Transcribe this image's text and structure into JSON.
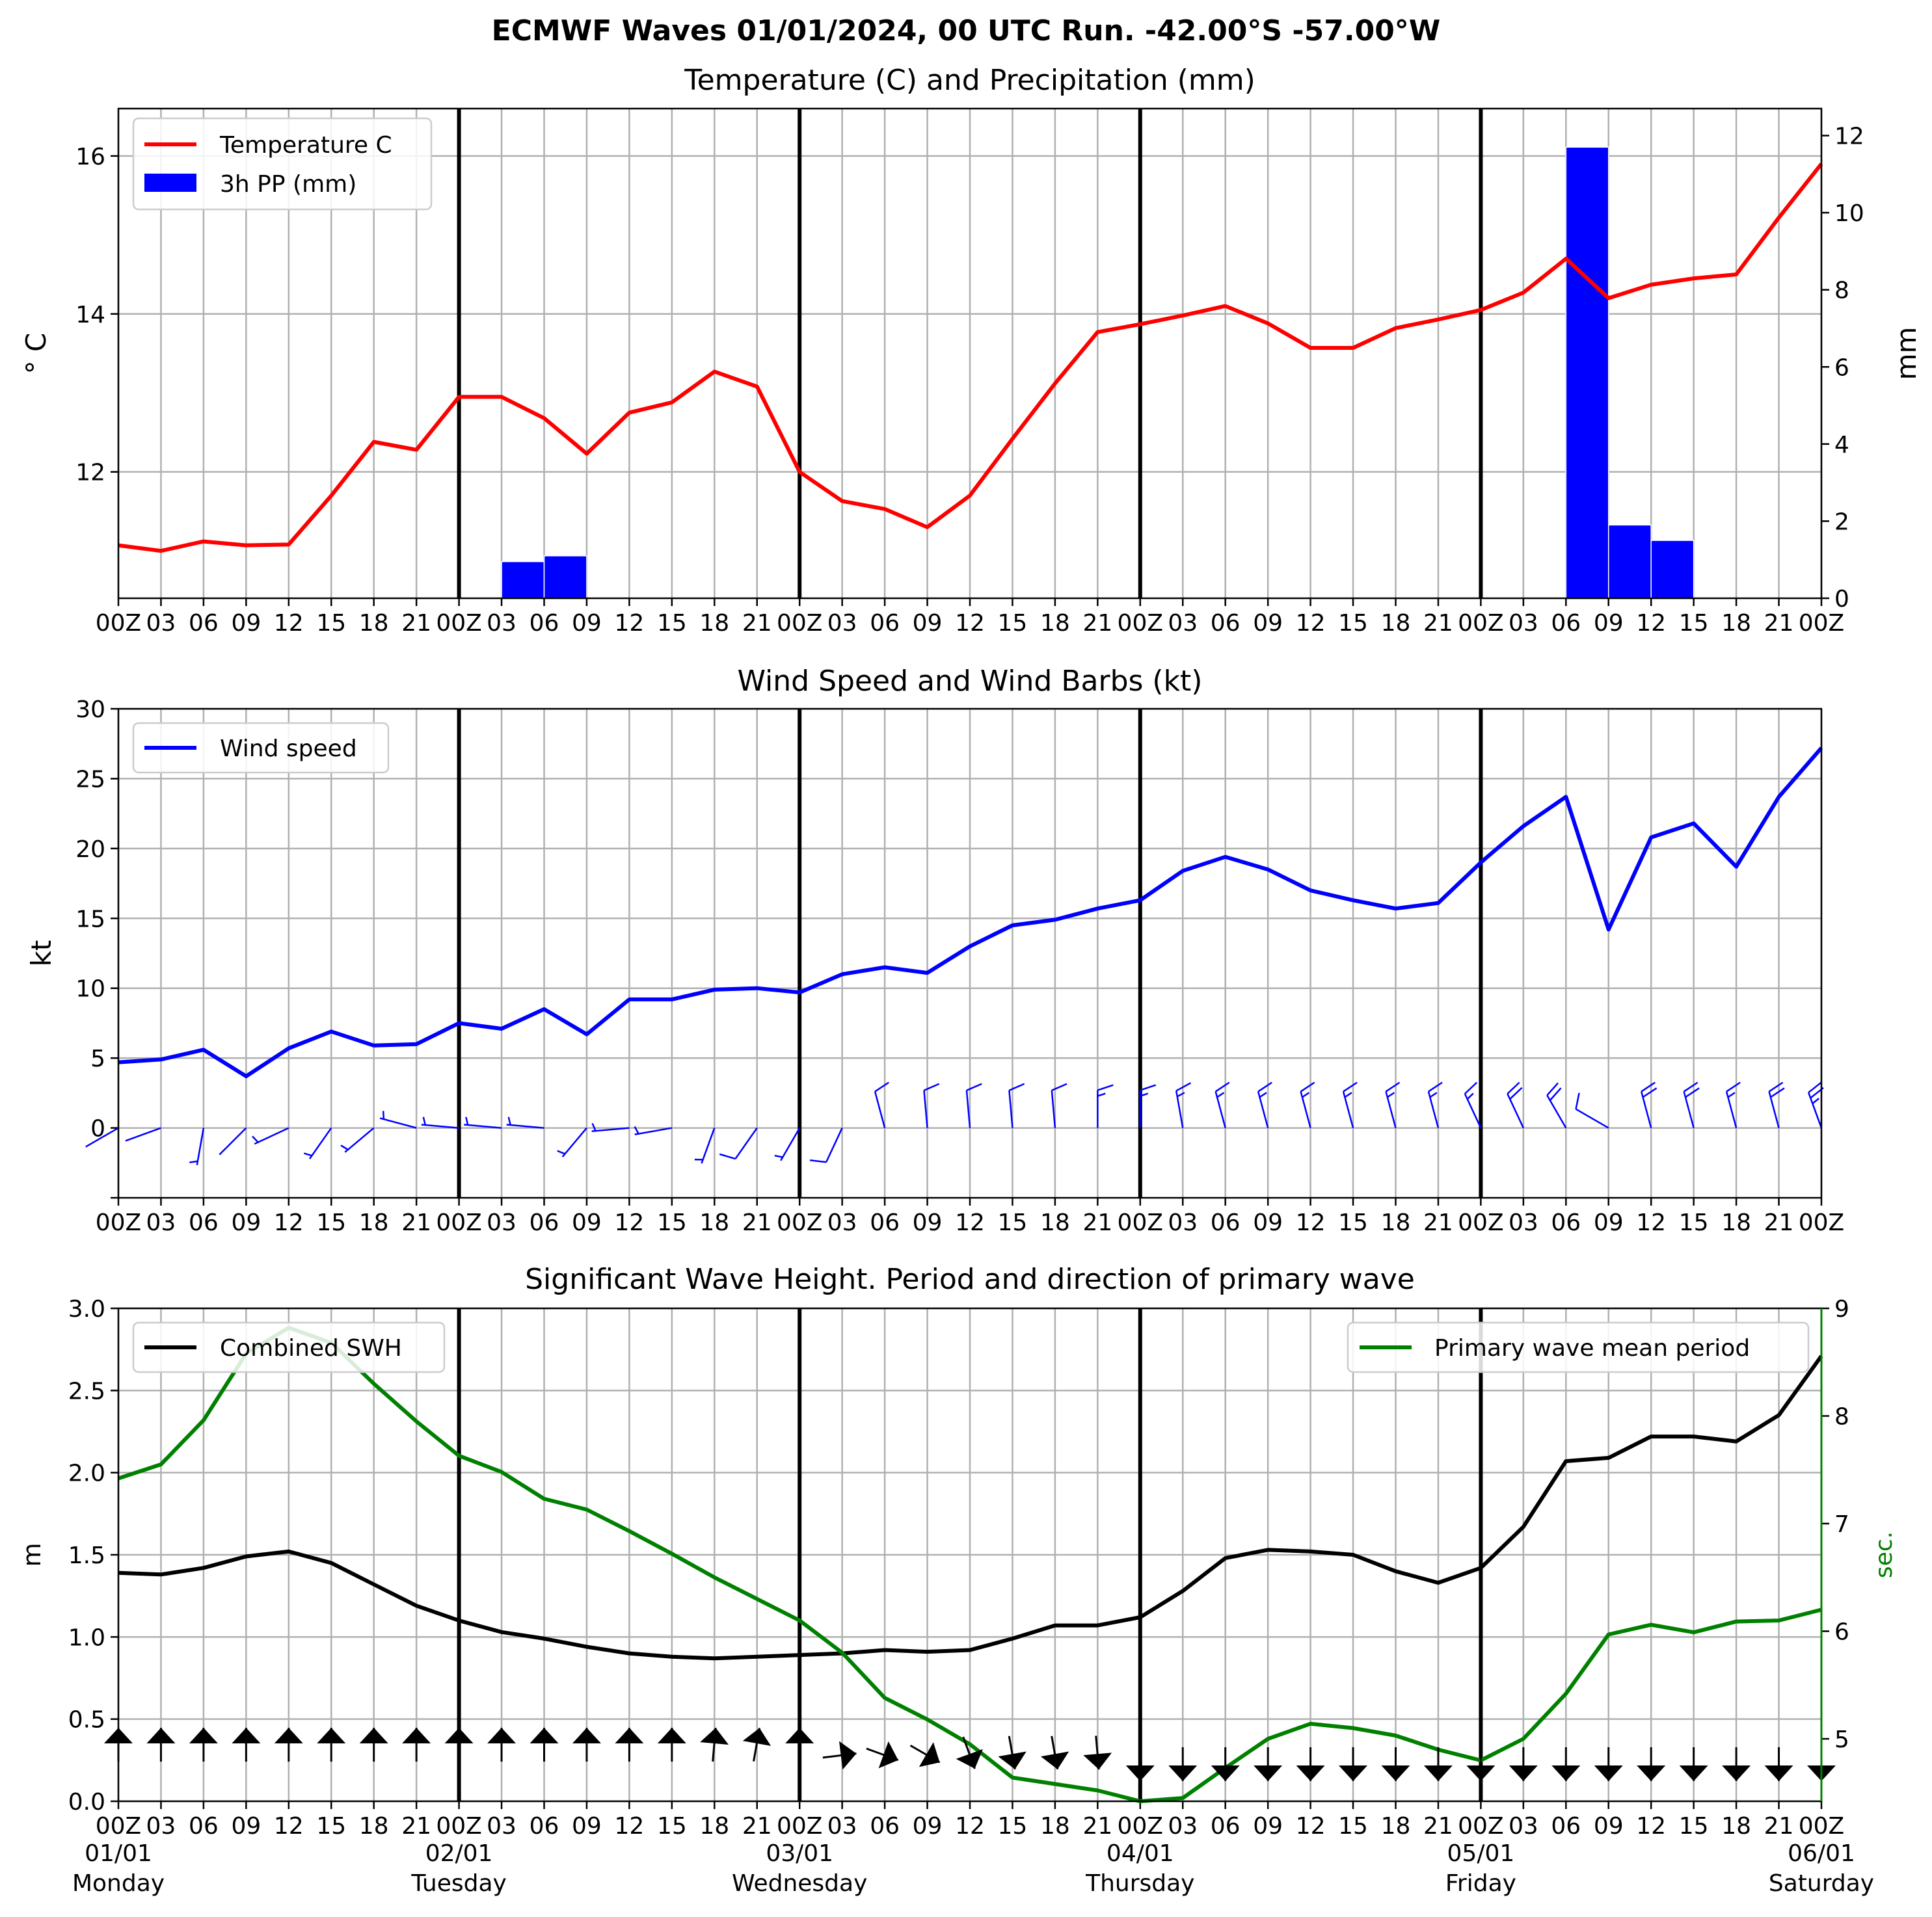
{
  "title": "ECMWF Waves 01/01/2024, 00 UTC Run. -42.00°S -57.00°W",
  "colors": {
    "temperature": "#ff0000",
    "precip": "#0000ff",
    "wind": "#0000ff",
    "swh": "#000000",
    "period": "#008000",
    "grid": "#b0b0b0"
  },
  "x_ticks": [
    "00Z",
    "03",
    "06",
    "09",
    "12",
    "15",
    "18",
    "21",
    "00Z",
    "03",
    "06",
    "09",
    "12",
    "15",
    "18",
    "21",
    "00Z",
    "03",
    "06",
    "09",
    "12",
    "15",
    "18",
    "21",
    "00Z",
    "03",
    "06",
    "09",
    "12",
    "15",
    "18",
    "21",
    "00Z",
    "03",
    "06",
    "09",
    "12",
    "15",
    "18",
    "21",
    "00Z"
  ],
  "day_labels": [
    {
      "date": "01/01",
      "day": "Monday",
      "step": 0
    },
    {
      "date": "02/01",
      "day": "Tuesday",
      "step": 8
    },
    {
      "date": "03/01",
      "day": "Wednesday",
      "step": 16
    },
    {
      "date": "04/01",
      "day": "Thursday",
      "step": 24
    },
    {
      "date": "05/01",
      "day": "Friday",
      "step": 32
    },
    {
      "date": "06/01",
      "day": "Saturday",
      "step": 40
    }
  ],
  "chart_data": [
    {
      "type": "line",
      "title": "Temperature (C) and Precipitation (mm)",
      "ylabel": "$^\\circ$C",
      "ylabel_display": "° C",
      "y2label": "mm",
      "ylim": [
        10.4,
        16.6
      ],
      "y2lim": [
        0,
        12.7
      ],
      "yticks": [
        12,
        14,
        16
      ],
      "y2ticks": [
        0,
        2,
        4,
        6,
        8,
        10,
        12
      ],
      "legend": {
        "position": "top-left",
        "entries": [
          "Temperature C",
          "3h PP (mm)"
        ]
      },
      "grid": true,
      "series": [
        {
          "name": "Temperature C",
          "type": "line",
          "color": "#ff0000",
          "values": [
            11.07,
            11.0,
            11.12,
            11.07,
            11.08,
            11.7,
            12.38,
            12.28,
            12.95,
            12.95,
            12.68,
            12.23,
            12.75,
            12.88,
            13.27,
            13.08,
            12.0,
            11.63,
            11.53,
            11.3,
            11.7,
            12.42,
            13.12,
            13.77,
            13.87,
            13.98,
            14.1,
            13.88,
            13.57,
            13.57,
            13.82,
            13.93,
            14.05,
            14.27,
            14.7,
            14.2,
            14.37,
            14.45,
            14.5,
            15.22,
            15.9
          ]
        },
        {
          "name": "3h PP (mm)",
          "type": "bar",
          "color": "#0000ff",
          "values": [
            0,
            0,
            0,
            0,
            0,
            0,
            0,
            0,
            0,
            0,
            0.95,
            1.1,
            0,
            0,
            0,
            0,
            0,
            0,
            0,
            0,
            0,
            0,
            0,
            0,
            0,
            0,
            0,
            0,
            0,
            0,
            0,
            0,
            0,
            0,
            0,
            11.7,
            1.9,
            1.5,
            0,
            0,
            0
          ]
        }
      ]
    },
    {
      "type": "line",
      "title": "Wind Speed and Wind Barbs (kt)",
      "ylabel": "kt",
      "ylim": [
        -5,
        30
      ],
      "yticks": [
        0,
        5,
        10,
        15,
        20,
        25,
        30
      ],
      "legend": {
        "position": "top-left",
        "entries": [
          "Wind speed"
        ]
      },
      "grid": true,
      "series": [
        {
          "name": "Wind speed",
          "type": "line",
          "color": "#0000ff",
          "values": [
            4.7,
            4.9,
            5.6,
            3.7,
            5.7,
            6.9,
            5.9,
            6.0,
            7.5,
            7.1,
            8.5,
            6.7,
            9.2,
            9.2,
            9.9,
            10.0,
            9.7,
            11.0,
            11.5,
            11.1,
            13.0,
            14.5,
            14.9,
            15.7,
            16.3,
            18.4,
            19.4,
            18.5,
            17.0,
            16.3,
            15.7,
            16.1,
            19.0,
            21.6,
            23.7,
            14.2,
            20.8,
            21.8,
            18.7,
            23.7,
            27.2
          ]
        },
        {
          "name": "Wind barbs",
          "type": "barbs",
          "color": "#0000ff",
          "direction_deg": [
            240,
            250,
            190,
            225,
            245,
            215,
            230,
            285,
            275,
            275,
            275,
            220,
            265,
            260,
            200,
            215,
            210,
            205,
            345,
            355,
            355,
            355,
            355,
            360,
            360,
            350,
            345,
            345,
            345,
            345,
            345,
            345,
            335,
            335,
            330,
            300,
            345,
            345,
            345,
            345,
            340
          ]
        }
      ]
    },
    {
      "type": "line",
      "title": "Significant Wave Height. Period and direction of primary wave",
      "ylabel": "m",
      "y2label": "sec.",
      "ylim": [
        0,
        3
      ],
      "y2lim": [
        4.42,
        9
      ],
      "yticks": [
        0.0,
        0.5,
        1.0,
        1.5,
        2.0,
        2.5,
        3.0
      ],
      "y2ticks": [
        5,
        6,
        7,
        8,
        9
      ],
      "legend": {
        "left": [
          "Combined SWH"
        ],
        "right": [
          "Primary wave mean period"
        ]
      },
      "grid": true,
      "series": [
        {
          "name": "Combined SWH",
          "type": "line",
          "color": "#000000",
          "values": [
            1.39,
            1.38,
            1.42,
            1.49,
            1.52,
            1.45,
            1.32,
            1.19,
            1.1,
            1.03,
            0.99,
            0.94,
            0.9,
            0.88,
            0.87,
            0.88,
            0.89,
            0.9,
            0.92,
            0.91,
            0.92,
            0.99,
            1.07,
            1.07,
            1.12,
            1.28,
            1.48,
            1.53,
            1.52,
            1.5,
            1.4,
            1.33,
            1.42,
            1.67,
            2.07,
            2.09,
            2.22,
            2.22,
            2.19,
            2.35,
            2.71
          ]
        },
        {
          "name": "Primary wave mean period",
          "type": "line",
          "color": "#008000",
          "values": [
            7.42,
            7.55,
            7.96,
            8.58,
            8.82,
            8.68,
            8.3,
            7.95,
            7.63,
            7.48,
            7.23,
            7.13,
            6.93,
            6.72,
            6.5,
            6.3,
            6.1,
            5.8,
            5.38,
            5.18,
            4.95,
            4.64,
            4.58,
            4.52,
            4.42,
            4.45,
            4.73,
            5.0,
            5.14,
            5.1,
            5.03,
            4.9,
            4.8,
            5.0,
            5.42,
            5.97,
            6.06,
            5.99,
            6.09,
            6.1,
            6.2
          ]
        },
        {
          "name": "Primary wave direction",
          "type": "arrows",
          "color": "#000000",
          "direction_deg": [
            180,
            180,
            180,
            180,
            180,
            180,
            180,
            180,
            180,
            180,
            180,
            180,
            180,
            180,
            185,
            190,
            180,
            263,
            290,
            300,
            340,
            350,
            350,
            355,
            360,
            360,
            360,
            360,
            360,
            360,
            360,
            360,
            360,
            360,
            360,
            360,
            360,
            360,
            360,
            360,
            360
          ]
        }
      ]
    }
  ]
}
